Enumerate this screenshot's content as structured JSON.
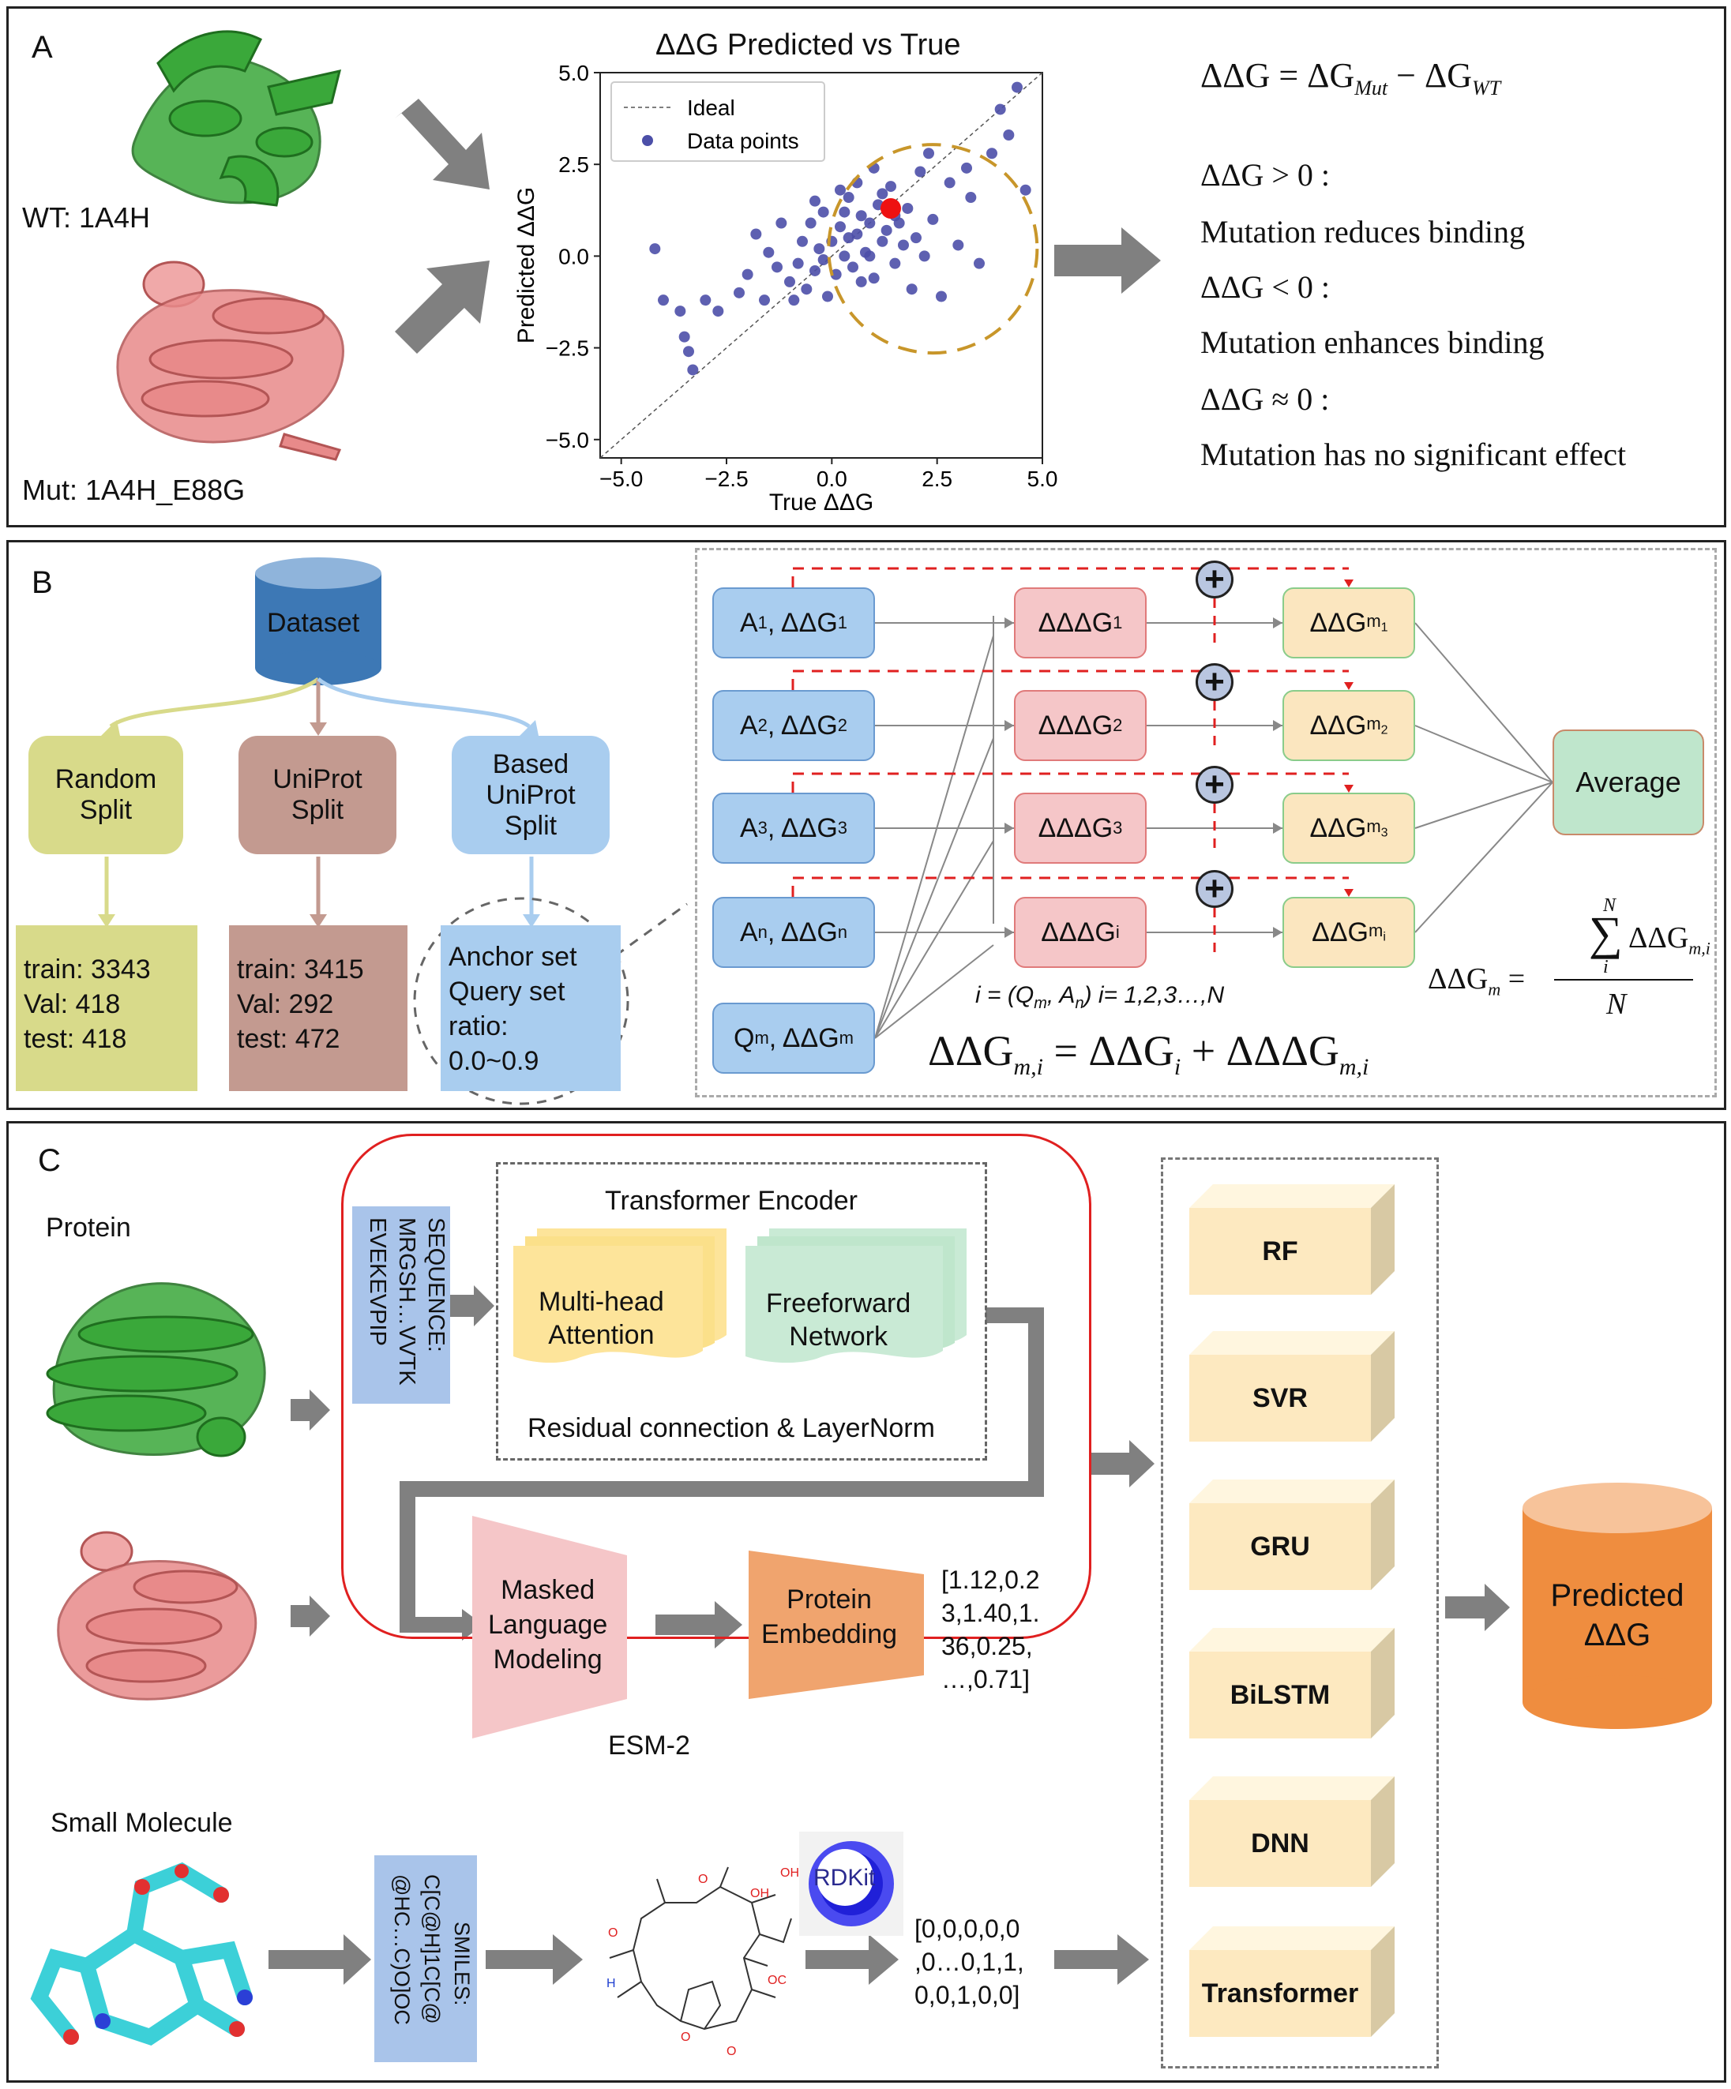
{
  "colors": {
    "green_protein": "#3aa83a",
    "pink_protein": "#e88a8a",
    "scatter_blue": "#4c4fa8",
    "highlight_red": "#ee1111",
    "circle_gold": "#c8962a",
    "arrow_gray": "#808080",
    "dataset_blue": "#3d78b5",
    "random_yellow": "#d8da8a",
    "uniprot_brown": "#c39a90",
    "based_blue": "#a9cdef",
    "box_blue": "#a9cdef",
    "box_pink": "#f5c6c8",
    "box_cream": "#fbe6bf",
    "box_green": "#bfe6cc",
    "esm_red": "#e02020",
    "cube_cream": "#fde9c0",
    "pred_orange": "#ef8d3f"
  },
  "panelA": {
    "label": "A",
    "wt_label": "WT:  1A4H",
    "mut_label": "Mut:  1A4H_E88G",
    "formula_main": "ΔΔG = ΔG",
    "formula_sub1": "Mut",
    "formula_mid": " − ΔG",
    "formula_sub2": "WT",
    "cond1": "ΔΔG > 0 :",
    "text1": "Mutation reduces binding",
    "cond2": "ΔΔG < 0 :",
    "text2": "Mutation enhances binding",
    "cond3": "ΔΔG ≈ 0 :",
    "text3": "Mutation has no significant effect"
  },
  "chart_data": {
    "type": "scatter",
    "title": "ΔΔG Predicted vs True",
    "xlabel": "True ΔΔG",
    "ylabel": "Predicted ΔΔG",
    "xlim": [
      -5.5,
      5.0
    ],
    "ylim": [
      -5.5,
      5.0
    ],
    "xticks": [
      "−5.0",
      "−2.5",
      "0.0",
      "2.5",
      "5.0"
    ],
    "yticks": [
      "5.0",
      "2.5",
      "0.0",
      "−2.5",
      "−5.0"
    ],
    "legend_position": "top-left",
    "legend": [
      "Ideal",
      "Data points"
    ],
    "ideal_line": [
      [
        -5.5,
        -5.5
      ],
      [
        5.0,
        5.0
      ]
    ],
    "highlight_point": [
      1.4,
      1.3
    ],
    "points": [
      [
        -4.2,
        0.2
      ],
      [
        -3.6,
        -1.5
      ],
      [
        -3.5,
        -2.2
      ],
      [
        -3.3,
        -3.1
      ],
      [
        -3.4,
        -2.6
      ],
      [
        -4.0,
        -1.2
      ],
      [
        -3.0,
        -1.2
      ],
      [
        -2.7,
        -1.5
      ],
      [
        -2.2,
        -1.0
      ],
      [
        -2.0,
        -0.5
      ],
      [
        -1.8,
        0.6
      ],
      [
        -1.6,
        -1.2
      ],
      [
        -1.5,
        0.1
      ],
      [
        -1.3,
        -0.3
      ],
      [
        -1.2,
        0.9
      ],
      [
        -1.0,
        -0.7
      ],
      [
        -0.9,
        -1.2
      ],
      [
        -0.8,
        -0.2
      ],
      [
        -0.7,
        0.4
      ],
      [
        -0.6,
        -0.9
      ],
      [
        -0.5,
        0.9
      ],
      [
        -0.4,
        -0.4
      ],
      [
        -0.3,
        0.2
      ],
      [
        -0.2,
        1.2
      ],
      [
        -0.1,
        -1.1
      ],
      [
        0.0,
        0.4
      ],
      [
        0.1,
        -0.5
      ],
      [
        0.2,
        0.8
      ],
      [
        0.3,
        0.0
      ],
      [
        0.4,
        1.6
      ],
      [
        0.5,
        -0.3
      ],
      [
        0.6,
        0.6
      ],
      [
        0.7,
        1.1
      ],
      [
        0.8,
        0.1
      ],
      [
        0.9,
        0.9
      ],
      [
        1.0,
        -0.6
      ],
      [
        1.1,
        1.4
      ],
      [
        1.2,
        0.4
      ],
      [
        1.3,
        0.7
      ],
      [
        1.4,
        1.9
      ],
      [
        1.5,
        -0.2
      ],
      [
        1.6,
        0.9
      ],
      [
        1.7,
        0.3
      ],
      [
        1.8,
        1.3
      ],
      [
        1.9,
        -0.9
      ],
      [
        2.0,
        0.5
      ],
      [
        2.1,
        2.3
      ],
      [
        2.2,
        0.0
      ],
      [
        2.4,
        1.0
      ],
      [
        2.6,
        -1.1
      ],
      [
        2.8,
        2.0
      ],
      [
        3.0,
        0.3
      ],
      [
        3.2,
        2.4
      ],
      [
        3.3,
        1.6
      ],
      [
        3.5,
        -0.2
      ],
      [
        3.8,
        2.8
      ],
      [
        4.0,
        4.0
      ],
      [
        4.2,
        3.3
      ],
      [
        4.4,
        4.6
      ],
      [
        4.6,
        1.8
      ],
      [
        0.2,
        1.8
      ],
      [
        0.6,
        2.0
      ],
      [
        -0.4,
        1.5
      ],
      [
        1.0,
        2.4
      ],
      [
        2.3,
        2.8
      ],
      [
        1.5,
        1.1
      ],
      [
        0.9,
        0.0
      ],
      [
        0.4,
        0.5
      ],
      [
        -0.2,
        -0.1
      ],
      [
        0.7,
        -0.7
      ],
      [
        1.2,
        1.7
      ],
      [
        0.3,
        1.2
      ]
    ]
  },
  "panelB": {
    "label": "B",
    "dataset": "Dataset",
    "random_split": [
      "Random",
      "Split"
    ],
    "uniprot_split": [
      "UniProt",
      "Split"
    ],
    "based_split": [
      "Based",
      "UniProt",
      "Split"
    ],
    "random_stats": [
      "train:  3343",
      "Val:  418",
      "test:  418"
    ],
    "uniprot_stats": [
      "train:  3415",
      "Val:  292",
      "test:  472"
    ],
    "based_stats": [
      "Anchor set",
      "Query set",
      "ratio:",
      "0.0~0.9"
    ],
    "anchors": [
      {
        "a": "A",
        "sub": "1",
        "d": "ΔΔG",
        "dsub": "1"
      },
      {
        "a": "A",
        "sub": "2",
        "d": "ΔΔG",
        "dsub": "2"
      },
      {
        "a": "A",
        "sub": "3",
        "d": "ΔΔG",
        "dsub": "3"
      },
      {
        "a": "A",
        "sub": "n",
        "d": "ΔΔG",
        "dsub": "n"
      }
    ],
    "query": {
      "a": "Q",
      "sub": "m",
      "d": "ΔΔG",
      "dsub": "m"
    },
    "deltas": [
      {
        "d": "ΔΔΔG",
        "sub": "1"
      },
      {
        "d": "ΔΔΔG",
        "sub": "2"
      },
      {
        "d": "ΔΔΔG",
        "sub": "3"
      },
      {
        "d": "ΔΔΔG",
        "sub": "i"
      }
    ],
    "outs": [
      {
        "d": "ΔΔG",
        "sub": "m",
        "subsub": "1"
      },
      {
        "d": "ΔΔG",
        "sub": "m",
        "subsub": "2"
      },
      {
        "d": "ΔΔG",
        "sub": "m",
        "subsub": "3"
      },
      {
        "d": "ΔΔG",
        "sub": "m",
        "subsub": "i"
      }
    ],
    "average": "Average",
    "index_text": "i = (Q",
    "index_text_sub": "m",
    "index_text2": ", A",
    "index_text_sub2": "n",
    "index_text3": ")    i= 1,2,3…,N",
    "eq_main": "ΔΔG",
    "eq_sub": "m,i",
    "eq_rest": " = ΔΔG",
    "eq_sub2": "i",
    "eq_rest2": " + ΔΔΔG",
    "eq_sub3": "m,i",
    "avg_lhs": "ΔΔG",
    "avg_lhs_sub": "m",
    "avg_eq": "=",
    "avg_sum": "∑",
    "avg_sum_top": "N",
    "avg_sum_bottom": "i",
    "avg_num": "ΔΔG",
    "avg_num_sub": "m,i",
    "avg_den": "N",
    "plus": "+"
  },
  "panelC": {
    "label": "C",
    "protein": "Protein",
    "small_molecule": "Small Molecule",
    "sequence": [
      "SEQUENCE:",
      "MRGSH…VVTK",
      "EVEKEVPIP"
    ],
    "transformer_encoder": "Transformer Encoder",
    "mha": [
      "Multi-head",
      "Attention"
    ],
    "ffn": [
      "Freeforward",
      "Network"
    ],
    "residual": "Residual connection & LayerNorm",
    "mlm": [
      "Masked",
      "Language",
      "Modeling"
    ],
    "protein_embedding": [
      "Protein",
      "Embedding"
    ],
    "embedding_vector": [
      "[1.12,0.2",
      "3,1.40,1.",
      "36,0.25,",
      "…,0.71]"
    ],
    "esm": "ESM-2",
    "smiles": [
      "SMILES:",
      "C[C@H]1C[C@",
      "@HC…C)O]OC"
    ],
    "rdkit": "RDKit",
    "fingerprint": [
      "[0,0,0,0,0",
      ",0…0,1,1,",
      "0,0,1,0,0]"
    ],
    "models": [
      "RF",
      "SVR",
      "GRU",
      "BiLSTM",
      "DNN",
      "Transformer"
    ],
    "predicted": [
      "Predicted",
      "ΔΔG"
    ],
    "mol_labels": [
      "OH",
      "H",
      "O",
      "OC",
      "O",
      "OH",
      "O",
      "O"
    ]
  }
}
